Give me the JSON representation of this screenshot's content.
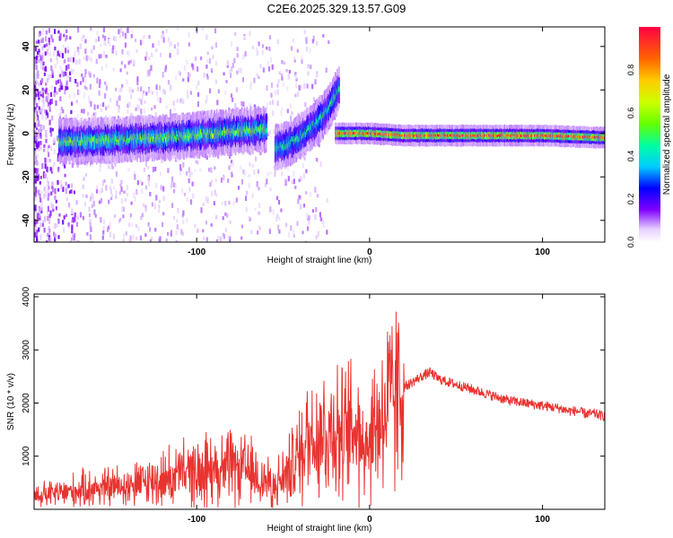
{
  "title": "C2E6.2025.329.13.57.G09",
  "colors": {
    "signal": "#e8332f",
    "frame": "#000000"
  },
  "chart_data": [
    {
      "type": "heatmap",
      "xlabel": "Height of straight line (km)",
      "ylabel": "Frequency (Hz)",
      "xlim": [
        -194,
        136
      ],
      "ylim": [
        -50,
        49
      ],
      "xticks": [
        -100,
        0,
        100
      ],
      "yticks": [
        -40,
        -20,
        0,
        20,
        40
      ],
      "colorbar": {
        "label": "Normalized spectral amplitude",
        "range": [
          0,
          1
        ],
        "ticks": [
          "0.0",
          "0.2",
          "0.4",
          "0.6",
          "0.8"
        ]
      },
      "traces": [
        {
          "name": "",
          "x": [
            -180,
            -150,
            -120,
            -90,
            -60
          ],
          "y": [
            -4,
            -3,
            -2,
            0,
            2
          ],
          "amplitude": 0.55
        },
        {
          "name": "",
          "x": [
            -55,
            -45,
            -35,
            -25,
            -18
          ],
          "y": [
            -7,
            -4,
            2,
            10,
            21
          ],
          "amplitude": 0.45
        },
        {
          "name": "",
          "x": [
            -20,
            0,
            20,
            60,
            100,
            136
          ],
          "y": [
            0,
            0,
            -1,
            -1,
            -1,
            -2
          ],
          "amplitude": 0.9
        }
      ]
    },
    {
      "type": "line",
      "xlabel": "Height of straight line (km)",
      "ylabel": "SNR (10 * v/v)",
      "xlim": [
        -194,
        136
      ],
      "ylim": [
        0,
        4050
      ],
      "xticks": [
        -100,
        0,
        100
      ],
      "yticks": [
        1000,
        2000,
        3000,
        4000
      ],
      "series": [
        {
          "name": "",
          "x": [
            -194,
            -180,
            -170,
            -160,
            -150,
            -140,
            -130,
            -120,
            -110,
            -100,
            -95,
            -90,
            -85,
            -80,
            -75,
            -70,
            -65,
            -60,
            -55,
            -50,
            -45,
            -40,
            -35,
            -30,
            -25,
            -20,
            -15,
            -10,
            -5,
            0,
            5,
            10,
            15,
            20,
            25,
            30,
            35,
            40,
            50,
            60,
            70,
            80,
            90,
            100,
            110,
            115,
            120,
            125,
            130,
            136
          ],
          "y": [
            250,
            300,
            350,
            400,
            420,
            450,
            500,
            560,
            650,
            700,
            720,
            740,
            760,
            770,
            760,
            700,
            620,
            520,
            450,
            600,
            800,
            1050,
            1350,
            1500,
            1400,
            1600,
            1300,
            1550,
            1450,
            1300,
            1700,
            1900,
            2100,
            2300,
            2400,
            2500,
            2580,
            2450,
            2350,
            2250,
            2150,
            2050,
            2000,
            1950,
            1900,
            1850,
            1850,
            1800,
            1800,
            1750
          ]
        }
      ]
    }
  ]
}
